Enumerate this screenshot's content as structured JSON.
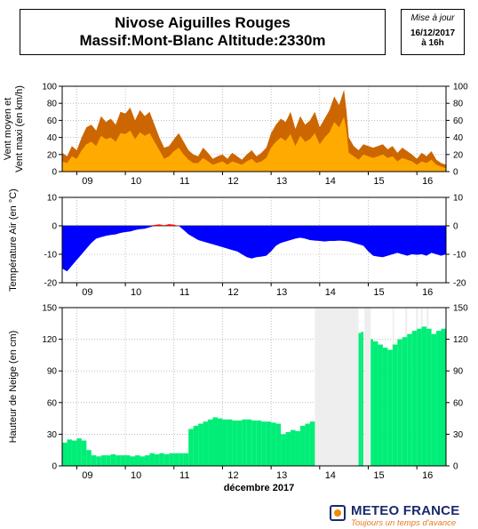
{
  "header": {
    "title_line1": "Nivose Aiguilles Rouges",
    "title_line2": "Massif:Mont-Blanc Altitude:2330m",
    "update_label": "Mise à jour",
    "update_date": "16/12/2017",
    "update_time": "à 16h"
  },
  "footer": {
    "month_label": "décembre 2017",
    "brand_name": "METEO FRANCE",
    "brand_tagline": "Toujours un temps d'avance"
  },
  "colors": {
    "wind_max": "#cc6600",
    "wind_mean": "#ffaa00",
    "temperature": "#0000ff",
    "temperature_positive": "#ff0000",
    "snow": "#00ee77",
    "missing": "#eeeeee",
    "grid": "#999999"
  },
  "chart_data": [
    {
      "type": "area",
      "ylabel": "Vent moyen et Vent maxi (en km/h)",
      "ylim": [
        0,
        100
      ],
      "yticks": [
        0,
        20,
        40,
        60,
        80,
        100
      ],
      "x_day_labels": [
        "09",
        "10",
        "11",
        "12",
        "13",
        "14",
        "15",
        "16"
      ],
      "x_range_days": [
        8.7,
        16.6
      ],
      "grid": true,
      "series": [
        {
          "name": "Vent maxi",
          "x": [
            8.7,
            8.8,
            8.9,
            9.0,
            9.1,
            9.2,
            9.3,
            9.4,
            9.5,
            9.6,
            9.7,
            9.8,
            9.9,
            10.0,
            10.1,
            10.2,
            10.3,
            10.4,
            10.5,
            10.6,
            10.7,
            10.8,
            10.9,
            11.0,
            11.1,
            11.2,
            11.3,
            11.4,
            11.5,
            11.6,
            11.7,
            11.8,
            11.9,
            12.0,
            12.1,
            12.2,
            12.3,
            12.4,
            12.5,
            12.6,
            12.7,
            12.8,
            12.9,
            13.0,
            13.1,
            13.2,
            13.3,
            13.4,
            13.5,
            13.6,
            13.7,
            13.8,
            13.9,
            14.0,
            14.1,
            14.2,
            14.3,
            14.4,
            14.5,
            14.55,
            14.6,
            14.7,
            14.8,
            14.9,
            15.0,
            15.1,
            15.2,
            15.3,
            15.4,
            15.5,
            15.6,
            15.7,
            15.8,
            15.9,
            16.0,
            16.1,
            16.2,
            16.3,
            16.4,
            16.5,
            16.6
          ],
          "values": [
            22,
            18,
            30,
            25,
            40,
            52,
            55,
            48,
            65,
            58,
            62,
            55,
            70,
            68,
            75,
            60,
            72,
            65,
            70,
            55,
            40,
            28,
            30,
            38,
            45,
            35,
            25,
            20,
            18,
            28,
            22,
            15,
            18,
            20,
            15,
            22,
            18,
            14,
            20,
            25,
            18,
            22,
            28,
            45,
            55,
            62,
            58,
            70,
            50,
            65,
            55,
            60,
            70,
            52,
            62,
            72,
            88,
            78,
            96,
            72,
            40,
            30,
            25,
            32,
            30,
            28,
            30,
            32,
            26,
            30,
            22,
            28,
            24,
            20,
            15,
            22,
            18,
            24,
            14,
            10,
            8
          ]
        },
        {
          "name": "Vent moyen",
          "x": [
            8.7,
            8.8,
            8.9,
            9.0,
            9.1,
            9.2,
            9.3,
            9.4,
            9.5,
            9.6,
            9.7,
            9.8,
            9.9,
            10.0,
            10.1,
            10.2,
            10.3,
            10.4,
            10.5,
            10.6,
            10.7,
            10.8,
            10.9,
            11.0,
            11.1,
            11.2,
            11.3,
            11.4,
            11.5,
            11.6,
            11.7,
            11.8,
            11.9,
            12.0,
            12.1,
            12.2,
            12.3,
            12.4,
            12.5,
            12.6,
            12.7,
            12.8,
            12.9,
            13.0,
            13.1,
            13.2,
            13.3,
            13.4,
            13.5,
            13.6,
            13.7,
            13.8,
            13.9,
            14.0,
            14.1,
            14.2,
            14.3,
            14.4,
            14.5,
            14.55,
            14.6,
            14.7,
            14.8,
            14.9,
            15.0,
            15.1,
            15.2,
            15.3,
            15.4,
            15.5,
            15.6,
            15.7,
            15.8,
            15.9,
            16.0,
            16.1,
            16.2,
            16.3,
            16.4,
            16.5,
            16.6
          ],
          "values": [
            12,
            10,
            18,
            15,
            25,
            32,
            35,
            30,
            42,
            38,
            40,
            35,
            45,
            44,
            48,
            38,
            46,
            42,
            45,
            35,
            25,
            15,
            18,
            24,
            28,
            20,
            14,
            10,
            10,
            16,
            12,
            8,
            10,
            12,
            8,
            12,
            10,
            8,
            12,
            15,
            10,
            12,
            16,
            28,
            35,
            40,
            36,
            44,
            30,
            42,
            35,
            38,
            45,
            32,
            40,
            46,
            58,
            52,
            64,
            48,
            22,
            18,
            14,
            20,
            18,
            16,
            18,
            20,
            16,
            18,
            12,
            16,
            14,
            12,
            8,
            12,
            10,
            14,
            8,
            6,
            4
          ]
        }
      ]
    },
    {
      "type": "area",
      "ylabel": "Température Air (en °C)",
      "ylim": [
        -20,
        10
      ],
      "yticks": [
        -20,
        -10,
        0,
        10
      ],
      "x_day_labels": [
        "09",
        "10",
        "11",
        "12",
        "13",
        "14",
        "15",
        "16"
      ],
      "grid": true,
      "series": [
        {
          "name": "Température",
          "x": [
            8.7,
            8.8,
            8.9,
            9.0,
            9.1,
            9.2,
            9.3,
            9.4,
            9.5,
            9.6,
            9.7,
            9.8,
            9.9,
            10.0,
            10.1,
            10.2,
            10.3,
            10.4,
            10.5,
            10.6,
            10.7,
            10.8,
            10.9,
            11.0,
            11.1,
            11.2,
            11.3,
            11.4,
            11.5,
            11.6,
            11.7,
            11.8,
            11.9,
            12.0,
            12.1,
            12.2,
            12.3,
            12.4,
            12.5,
            12.6,
            12.7,
            12.8,
            12.9,
            13.0,
            13.1,
            13.2,
            13.3,
            13.4,
            13.5,
            13.6,
            13.7,
            13.8,
            13.9,
            14.0,
            14.1,
            14.2,
            14.3,
            14.4,
            14.5,
            14.6,
            14.7,
            14.8,
            14.9,
            15.0,
            15.1,
            15.2,
            15.3,
            15.4,
            15.5,
            15.6,
            15.7,
            15.8,
            15.9,
            16.0,
            16.1,
            16.2,
            16.3,
            16.4,
            16.5,
            16.6
          ],
          "values": [
            -15,
            -16,
            -14,
            -12,
            -10,
            -8,
            -6,
            -4.5,
            -4,
            -3.5,
            -3.2,
            -3,
            -2.5,
            -2.2,
            -2,
            -1.5,
            -1.2,
            -1,
            -0.5,
            0.3,
            0.5,
            0.2,
            0.6,
            0.4,
            0,
            -1.5,
            -3,
            -4,
            -5,
            -5.5,
            -6,
            -6.5,
            -7,
            -7.5,
            -8,
            -8.5,
            -9,
            -10,
            -11,
            -11.5,
            -11,
            -10.8,
            -10.5,
            -9,
            -7,
            -6,
            -5.5,
            -5,
            -4.5,
            -4.2,
            -4.5,
            -5,
            -5.2,
            -5.3,
            -5.5,
            -5.3,
            -5.3,
            -5.2,
            -5.3,
            -5.5,
            -6,
            -6.5,
            -7,
            -9,
            -10.5,
            -10.8,
            -11,
            -10.5,
            -10,
            -9.5,
            -10,
            -10.5,
            -10,
            -10.2,
            -10,
            -10.5,
            -9.5,
            -10,
            -10.5,
            -10
          ]
        }
      ]
    },
    {
      "type": "area",
      "ylabel": "Hauteur de Neige (en cm)",
      "xlabel": "décembre 2017",
      "ylim": [
        0,
        150
      ],
      "yticks": [
        0,
        30,
        60,
        90,
        120,
        150
      ],
      "x_day_labels": [
        "09",
        "10",
        "11",
        "12",
        "13",
        "14",
        "15",
        "16"
      ],
      "grid": true,
      "missing_ranges": [
        [
          13.9,
          14.8
        ],
        [
          14.92,
          15.05
        ],
        [
          15.5,
          15.53
        ],
        [
          15.76,
          15.8
        ],
        [
          15.98,
          16.02
        ],
        [
          16.08,
          16.12
        ],
        [
          16.2,
          16.24
        ]
      ],
      "series": [
        {
          "name": "Hauteur de neige",
          "x": [
            8.7,
            8.8,
            8.9,
            9.0,
            9.1,
            9.2,
            9.3,
            9.4,
            9.5,
            9.6,
            9.7,
            9.8,
            9.9,
            10.0,
            10.1,
            10.2,
            10.3,
            10.4,
            10.5,
            10.6,
            10.7,
            10.8,
            10.9,
            11.0,
            11.1,
            11.2,
            11.3,
            11.4,
            11.5,
            11.6,
            11.7,
            11.8,
            11.9,
            12.0,
            12.1,
            12.2,
            12.3,
            12.4,
            12.5,
            12.6,
            12.7,
            12.8,
            12.9,
            13.0,
            13.1,
            13.2,
            13.3,
            13.4,
            13.5,
            13.6,
            13.7,
            13.8,
            13.9,
            14.8,
            14.85,
            14.9,
            15.05,
            15.1,
            15.2,
            15.3,
            15.4,
            15.5,
            15.6,
            15.7,
            15.8,
            15.9,
            16.0,
            16.1,
            16.2,
            16.3,
            16.4,
            16.5,
            16.6
          ],
          "values": [
            22,
            25,
            24,
            26,
            24,
            15,
            10,
            9,
            10,
            10,
            11,
            10,
            10,
            10,
            9,
            10,
            9,
            10,
            12,
            11,
            12,
            11,
            12,
            12,
            12,
            12,
            35,
            38,
            40,
            42,
            44,
            46,
            45,
            44,
            44,
            43,
            43,
            44,
            44,
            43,
            43,
            42,
            42,
            41,
            40,
            30,
            32,
            34,
            33,
            38,
            40,
            42,
            43,
            126,
            127,
            0,
            120,
            118,
            115,
            112,
            110,
            115,
            120,
            122,
            125,
            128,
            130,
            132,
            130,
            125,
            128,
            130,
            132
          ]
        }
      ]
    }
  ]
}
